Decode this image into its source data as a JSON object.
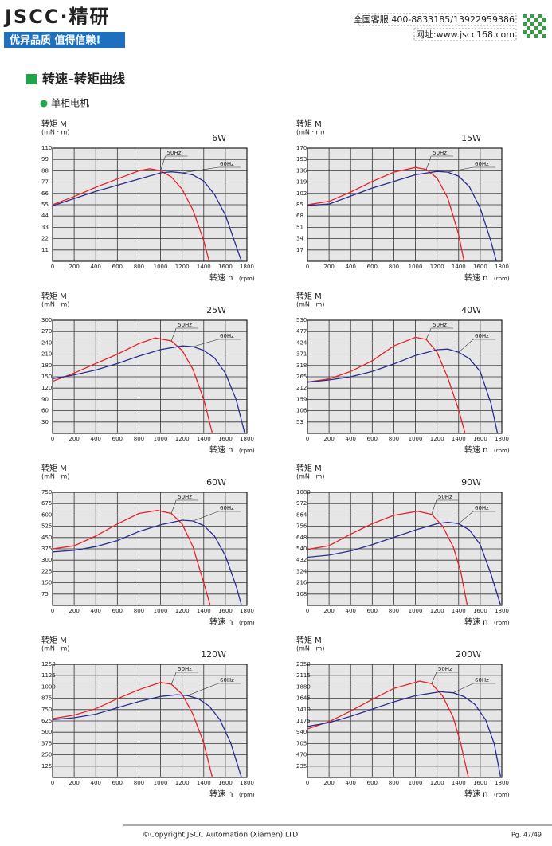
{
  "header": {
    "logo": "JSCC·精研",
    "slogan": "优异品质 值得信赖!",
    "hotline": "全国客服:400-8833185/13922959386",
    "website": "网址:www.jscc168.com"
  },
  "section_title": "转速–转矩曲线",
  "subsection": "单相电机",
  "chart_data": [
    {
      "type": "line",
      "title": "6W",
      "y_label": "转矩 M",
      "y_unit": "(mN · m)",
      "x_label": "转速 n",
      "x_unit": "(rpm)",
      "xlim": [
        0,
        1800
      ],
      "xticks": [
        0,
        200,
        400,
        600,
        800,
        1000,
        1200,
        1400,
        1600,
        1800
      ],
      "ylim": [
        0,
        110
      ],
      "yticks": [
        11,
        22,
        33,
        44,
        55,
        66,
        77,
        88,
        99,
        110
      ],
      "grid": true,
      "series": [
        {
          "name": "50Hz",
          "color": "#e8232a",
          "x": [
            0,
            200,
            400,
            600,
            800,
            900,
            1000,
            1100,
            1200,
            1300,
            1400,
            1450
          ],
          "values": [
            55,
            63,
            72,
            80,
            88,
            90,
            88,
            82,
            70,
            50,
            20,
            0
          ]
        },
        {
          "name": "60Hz",
          "color": "#2a2f8f",
          "x": [
            0,
            200,
            400,
            600,
            800,
            1000,
            1100,
            1200,
            1300,
            1400,
            1500,
            1600,
            1700,
            1750
          ],
          "values": [
            54,
            61,
            68,
            74,
            80,
            86,
            87,
            86,
            84,
            78,
            65,
            45,
            15,
            0
          ]
        }
      ]
    },
    {
      "type": "line",
      "title": "15W",
      "y_label": "转矩 M",
      "y_unit": "(mN · m)",
      "x_label": "转速 n",
      "x_unit": "(rpm)",
      "xlim": [
        0,
        1800
      ],
      "xticks": [
        0,
        200,
        400,
        600,
        800,
        1000,
        1200,
        1400,
        1600,
        1800
      ],
      "ylim": [
        0,
        170
      ],
      "yticks": [
        17,
        34,
        51,
        68,
        85,
        102,
        119,
        136,
        153,
        170
      ],
      "grid": true,
      "series": [
        {
          "name": "50Hz",
          "color": "#e8232a",
          "x": [
            0,
            200,
            400,
            600,
            800,
            1000,
            1100,
            1200,
            1300,
            1400,
            1450
          ],
          "values": [
            85,
            90,
            104,
            120,
            134,
            141,
            138,
            125,
            95,
            40,
            0
          ]
        },
        {
          "name": "60Hz",
          "color": "#2a2f8f",
          "x": [
            0,
            200,
            400,
            600,
            800,
            1000,
            1200,
            1300,
            1400,
            1500,
            1600,
            1700,
            1750
          ],
          "values": [
            84,
            86,
            98,
            110,
            120,
            130,
            135,
            134,
            128,
            112,
            80,
            30,
            0
          ]
        }
      ]
    },
    {
      "type": "line",
      "title": "25W",
      "y_label": "转矩 M",
      "y_unit": "(mN · m)",
      "x_label": "转速 n",
      "x_unit": "(rpm)",
      "xlim": [
        0,
        1800
      ],
      "xticks": [
        0,
        200,
        400,
        600,
        800,
        1000,
        1200,
        1400,
        1600,
        1800
      ],
      "ylim": [
        0,
        300
      ],
      "yticks": [
        30,
        60,
        90,
        120,
        150,
        180,
        210,
        240,
        270,
        300
      ],
      "grid": true,
      "series": [
        {
          "name": "50Hz",
          "color": "#e8232a",
          "x": [
            0,
            200,
            400,
            600,
            800,
            950,
            1100,
            1200,
            1300,
            1400,
            1480
          ],
          "values": [
            138,
            160,
            185,
            210,
            238,
            253,
            245,
            220,
            170,
            90,
            0
          ]
        },
        {
          "name": "60Hz",
          "color": "#2a2f8f",
          "x": [
            0,
            200,
            400,
            600,
            800,
            1000,
            1200,
            1300,
            1400,
            1500,
            1600,
            1700,
            1780
          ],
          "values": [
            145,
            155,
            168,
            185,
            205,
            222,
            232,
            230,
            220,
            200,
            160,
            90,
            0
          ]
        }
      ]
    },
    {
      "type": "line",
      "title": "40W",
      "y_label": "转矩 M",
      "y_unit": "(mN · m)",
      "x_label": "转速 n",
      "x_unit": "(rpm)",
      "xlim": [
        0,
        1800
      ],
      "xticks": [
        0,
        200,
        400,
        600,
        800,
        1000,
        1200,
        1400,
        1600,
        1800
      ],
      "ylim": [
        0,
        530
      ],
      "yticks": [
        53,
        106,
        159,
        212,
        265,
        318,
        371,
        424,
        477,
        530
      ],
      "grid": true,
      "series": [
        {
          "name": "50Hz",
          "color": "#e8232a",
          "x": [
            0,
            200,
            400,
            600,
            800,
            1000,
            1100,
            1200,
            1300,
            1400,
            1460
          ],
          "values": [
            240,
            255,
            290,
            340,
            410,
            450,
            440,
            380,
            260,
            110,
            0
          ]
        },
        {
          "name": "60Hz",
          "color": "#2a2f8f",
          "x": [
            0,
            200,
            400,
            600,
            800,
            1000,
            1200,
            1300,
            1400,
            1500,
            1600,
            1700,
            1760
          ],
          "values": [
            240,
            250,
            265,
            290,
            325,
            365,
            392,
            395,
            380,
            350,
            290,
            140,
            0
          ]
        }
      ]
    },
    {
      "type": "line",
      "title": "60W",
      "y_label": "转矩 M",
      "y_unit": "(mN · m)",
      "x_label": "转速 n",
      "x_unit": "(rpm)",
      "xlim": [
        0,
        1800
      ],
      "xticks": [
        0,
        200,
        400,
        600,
        800,
        1000,
        1200,
        1400,
        1600,
        1800
      ],
      "ylim": [
        0,
        750
      ],
      "yticks": [
        75,
        150,
        225,
        300,
        375,
        450,
        525,
        600,
        675,
        750
      ],
      "grid": true,
      "series": [
        {
          "name": "50Hz",
          "color": "#e8232a",
          "x": [
            0,
            200,
            400,
            600,
            800,
            970,
            1100,
            1200,
            1300,
            1400,
            1460
          ],
          "values": [
            375,
            395,
            460,
            540,
            610,
            630,
            610,
            540,
            390,
            150,
            0
          ]
        },
        {
          "name": "60Hz",
          "color": "#2a2f8f",
          "x": [
            0,
            200,
            400,
            600,
            800,
            1000,
            1200,
            1300,
            1400,
            1500,
            1600,
            1700,
            1750
          ],
          "values": [
            355,
            365,
            390,
            430,
            490,
            535,
            565,
            560,
            530,
            460,
            330,
            130,
            0
          ]
        }
      ]
    },
    {
      "type": "line",
      "title": "90W",
      "y_label": "转矩 M",
      "y_unit": "(mN · m)",
      "x_label": "转速 n",
      "x_unit": "(rpm)",
      "xlim": [
        0,
        1800
      ],
      "xticks": [
        0,
        200,
        400,
        600,
        800,
        1000,
        1200,
        1400,
        1600,
        1800
      ],
      "ylim": [
        0,
        1080
      ],
      "yticks": [
        108,
        216,
        324,
        432,
        540,
        648,
        756,
        864,
        972,
        1080
      ],
      "grid": true,
      "series": [
        {
          "name": "50Hz",
          "color": "#e8232a",
          "x": [
            0,
            200,
            400,
            600,
            800,
            1020,
            1150,
            1250,
            1350,
            1420,
            1480
          ],
          "values": [
            535,
            570,
            680,
            780,
            860,
            900,
            870,
            760,
            560,
            320,
            0
          ]
        },
        {
          "name": "60Hz",
          "color": "#2a2f8f",
          "x": [
            0,
            200,
            400,
            600,
            800,
            1000,
            1200,
            1300,
            1400,
            1500,
            1600,
            1700,
            1790
          ],
          "values": [
            460,
            480,
            520,
            580,
            650,
            720,
            780,
            795,
            780,
            720,
            580,
            300,
            0
          ]
        }
      ]
    },
    {
      "type": "line",
      "title": "120W",
      "y_label": "转矩 M",
      "y_unit": "(mN · m)",
      "x_label": "转速 n",
      "x_unit": "(rpm)",
      "xlim": [
        0,
        1800
      ],
      "xticks": [
        0,
        200,
        400,
        600,
        800,
        1000,
        1200,
        1400,
        1600,
        1800
      ],
      "ylim": [
        0,
        1250
      ],
      "yticks": [
        125,
        250,
        375,
        500,
        625,
        750,
        875,
        1000,
        1125,
        1250
      ],
      "grid": true,
      "series": [
        {
          "name": "50Hz",
          "color": "#e8232a",
          "x": [
            0,
            200,
            400,
            600,
            800,
            1000,
            1100,
            1200,
            1300,
            1400,
            1480
          ],
          "values": [
            650,
            690,
            760,
            870,
            970,
            1050,
            1030,
            920,
            700,
            380,
            0
          ]
        },
        {
          "name": "60Hz",
          "color": "#2a2f8f",
          "x": [
            0,
            200,
            400,
            600,
            800,
            1000,
            1150,
            1250,
            1350,
            1450,
            1550,
            1650,
            1750
          ],
          "values": [
            640,
            660,
            700,
            770,
            840,
            895,
            915,
            905,
            870,
            790,
            640,
            380,
            0
          ]
        }
      ]
    },
    {
      "type": "line",
      "title": "200W",
      "y_label": "转矩 M",
      "y_unit": "(mN · m)",
      "x_label": "转速 n",
      "x_unit": "(rpm)",
      "xlim": [
        0,
        1800
      ],
      "xticks": [
        0,
        200,
        400,
        600,
        800,
        1000,
        1200,
        1400,
        1600,
        1800
      ],
      "ylim": [
        0,
        2350
      ],
      "yticks": [
        235,
        470,
        705,
        940,
        1175,
        1410,
        1645,
        1880,
        2115,
        2350
      ],
      "grid": true,
      "series": [
        {
          "name": "50Hz",
          "color": "#e8232a",
          "x": [
            0,
            200,
            400,
            600,
            800,
            1040,
            1150,
            1250,
            1350,
            1420,
            1490
          ],
          "values": [
            1010,
            1160,
            1380,
            1620,
            1850,
            2000,
            1950,
            1700,
            1250,
            700,
            0
          ]
        },
        {
          "name": "60Hz",
          "color": "#2a2f8f",
          "x": [
            0,
            200,
            400,
            600,
            800,
            1000,
            1230,
            1350,
            1450,
            1550,
            1650,
            1730,
            1790
          ],
          "values": [
            1060,
            1140,
            1270,
            1420,
            1570,
            1700,
            1780,
            1760,
            1680,
            1520,
            1200,
            700,
            0
          ]
        }
      ]
    }
  ],
  "footer": {
    "copyright": "©Copyright JSCC Automation (Xiamen) LTD.",
    "page": "Pg. 47/49"
  }
}
